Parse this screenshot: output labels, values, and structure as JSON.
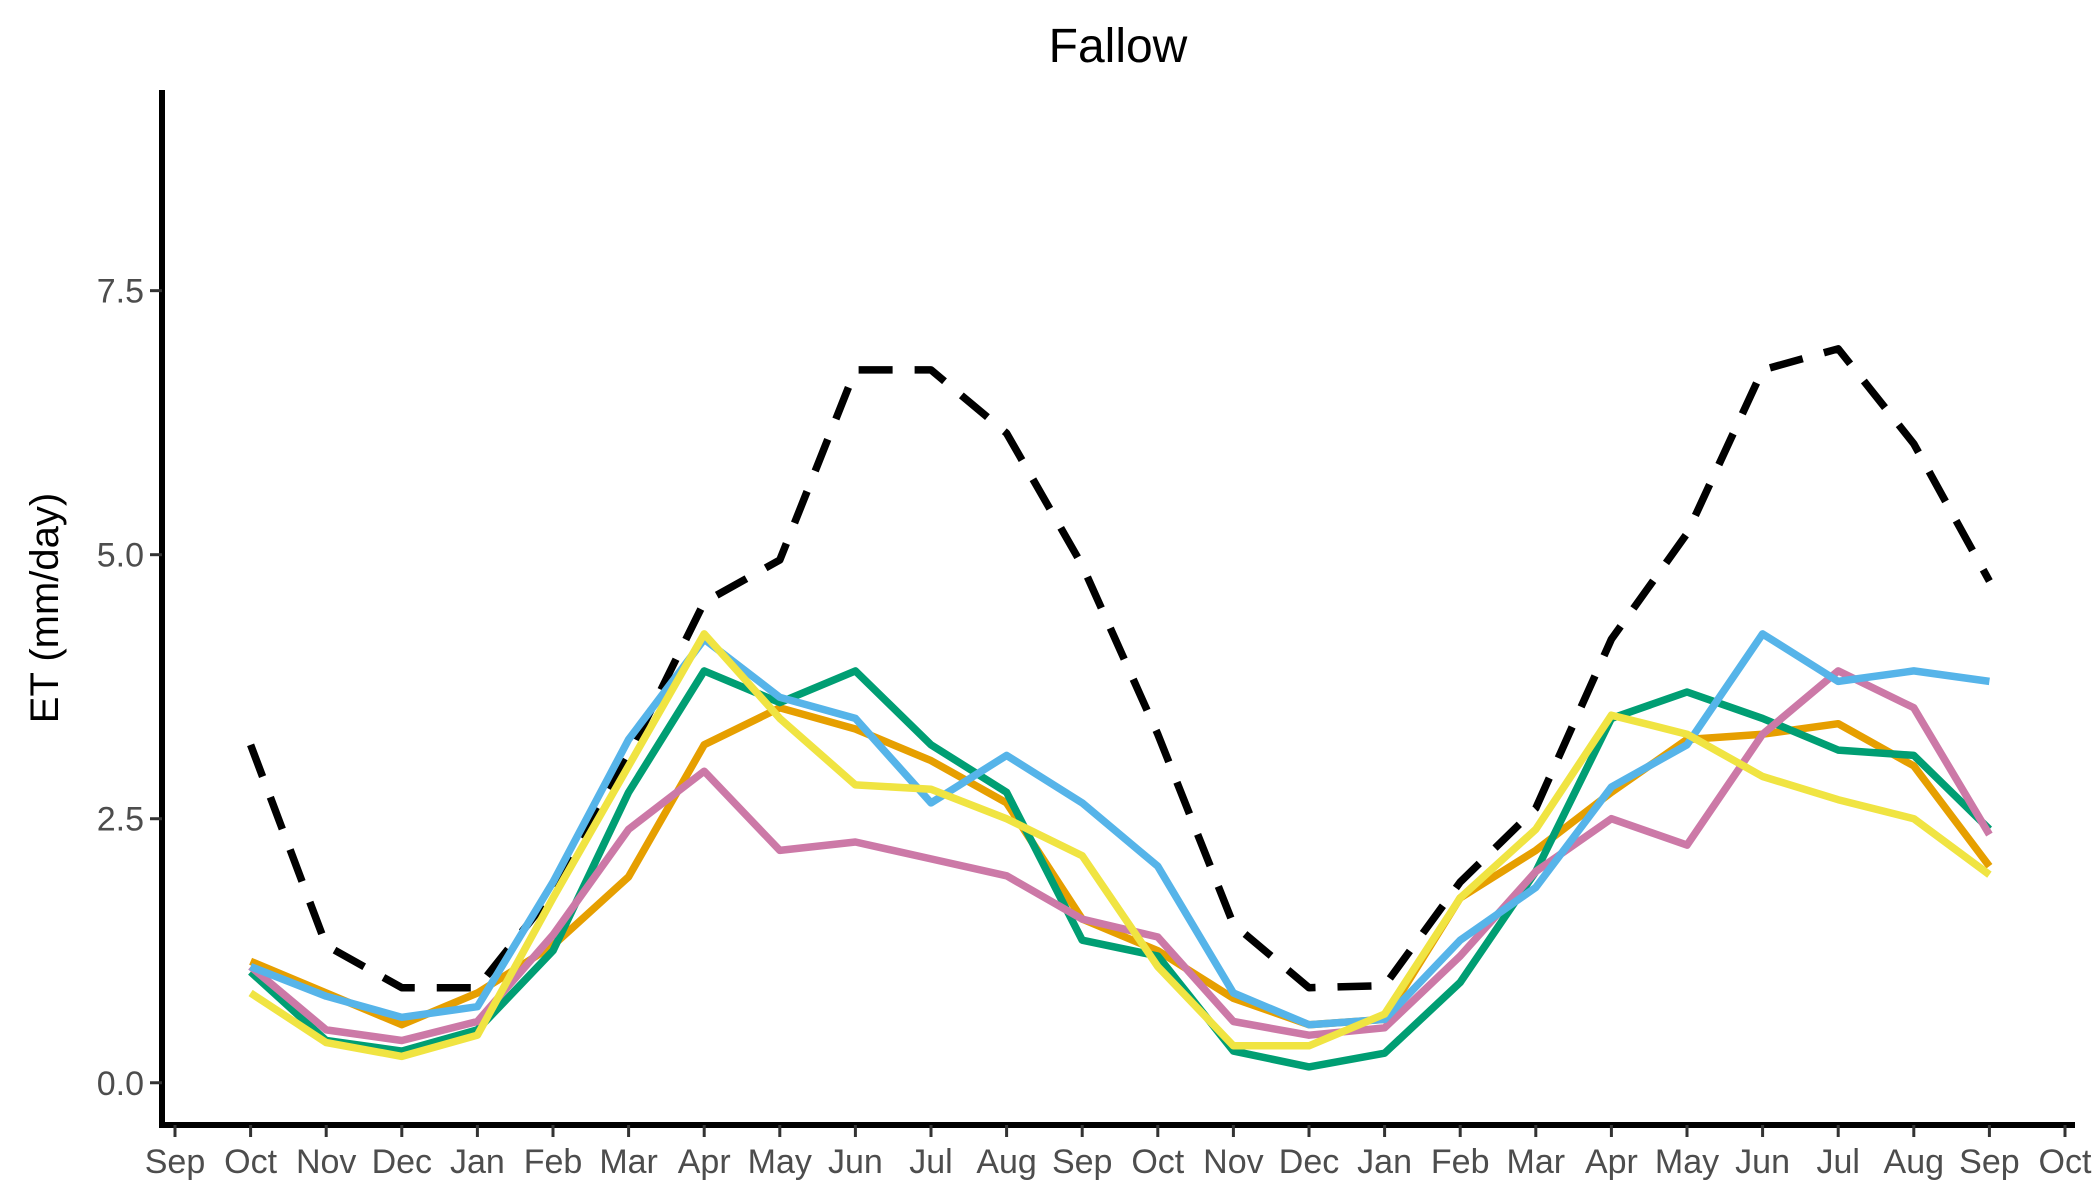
{
  "chart_data": {
    "type": "line",
    "title": "Fallow",
    "xlabel": "",
    "ylabel": "ET (mm/day)",
    "ylim": [
      -0.4,
      9.4
    ],
    "yticks": [
      0.0,
      2.5,
      5.0,
      7.5
    ],
    "ytick_labels": [
      "0.0",
      "2.5",
      "5.0",
      "7.5"
    ],
    "x_tick_labels": [
      "Sep",
      "Oct",
      "Nov",
      "Dec",
      "Jan",
      "Feb",
      "Mar",
      "Apr",
      "May",
      "Jun",
      "Jul",
      "Aug",
      "Sep",
      "Oct",
      "Nov",
      "Dec",
      "Jan",
      "Feb",
      "Mar",
      "Apr",
      "May",
      "Jun",
      "Jul",
      "Aug",
      "Sep",
      "Oct"
    ],
    "x": [
      "Oct",
      "Nov",
      "Dec",
      "Jan",
      "Feb",
      "Mar",
      "Apr",
      "May",
      "Jun",
      "Jul",
      "Aug",
      "Sep",
      "Oct",
      "Nov",
      "Dec",
      "Jan",
      "Feb",
      "Mar",
      "Apr",
      "May",
      "Jun",
      "Jul",
      "Aug",
      "Sep"
    ],
    "grid": false,
    "legend": "none",
    "series": [
      {
        "color": "#000000",
        "dashed": true,
        "values": [
          3.2,
          1.3,
          0.9,
          0.9,
          1.8,
          3.1,
          4.55,
          4.95,
          6.75,
          6.75,
          6.15,
          4.9,
          3.3,
          1.5,
          0.9,
          0.92,
          1.9,
          2.6,
          4.2,
          5.2,
          6.75,
          6.95,
          6.05,
          4.75
        ]
      },
      {
        "color": "#E69F00",
        "dashed": false,
        "values": [
          1.15,
          0.85,
          0.55,
          0.85,
          1.3,
          1.95,
          3.2,
          3.55,
          3.35,
          3.05,
          2.65,
          1.55,
          1.25,
          0.8,
          0.55,
          0.6,
          1.75,
          2.2,
          2.75,
          3.25,
          3.3,
          3.4,
          3.0,
          2.05
        ]
      },
      {
        "color": "#009E73",
        "dashed": false,
        "values": [
          1.05,
          0.4,
          0.3,
          0.5,
          1.25,
          2.75,
          3.9,
          3.6,
          3.9,
          3.2,
          2.75,
          1.35,
          1.2,
          0.3,
          0.15,
          0.28,
          0.95,
          2.0,
          3.45,
          3.7,
          3.45,
          3.15,
          3.1,
          2.4
        ]
      },
      {
        "color": "#CC79A7",
        "dashed": false,
        "values": [
          1.1,
          0.5,
          0.4,
          0.58,
          1.4,
          2.4,
          2.95,
          2.2,
          2.28,
          2.12,
          1.96,
          1.55,
          1.38,
          0.58,
          0.45,
          0.52,
          1.2,
          2.0,
          2.5,
          2.25,
          3.3,
          3.9,
          3.55,
          2.35
        ]
      },
      {
        "color": "#56B4E9",
        "dashed": false,
        "values": [
          1.1,
          0.82,
          0.62,
          0.72,
          1.9,
          3.25,
          4.2,
          3.65,
          3.45,
          2.65,
          3.1,
          2.65,
          2.05,
          0.85,
          0.55,
          0.6,
          1.35,
          1.85,
          2.8,
          3.2,
          4.25,
          3.8,
          3.9,
          3.8
        ]
      },
      {
        "color": "#F0E442",
        "dashed": false,
        "values": [
          0.85,
          0.38,
          0.25,
          0.45,
          1.75,
          3.0,
          4.25,
          3.45,
          2.82,
          2.78,
          2.5,
          2.15,
          1.1,
          0.35,
          0.35,
          0.65,
          1.75,
          2.4,
          3.48,
          3.3,
          2.9,
          2.68,
          2.5,
          1.97
        ]
      }
    ]
  }
}
